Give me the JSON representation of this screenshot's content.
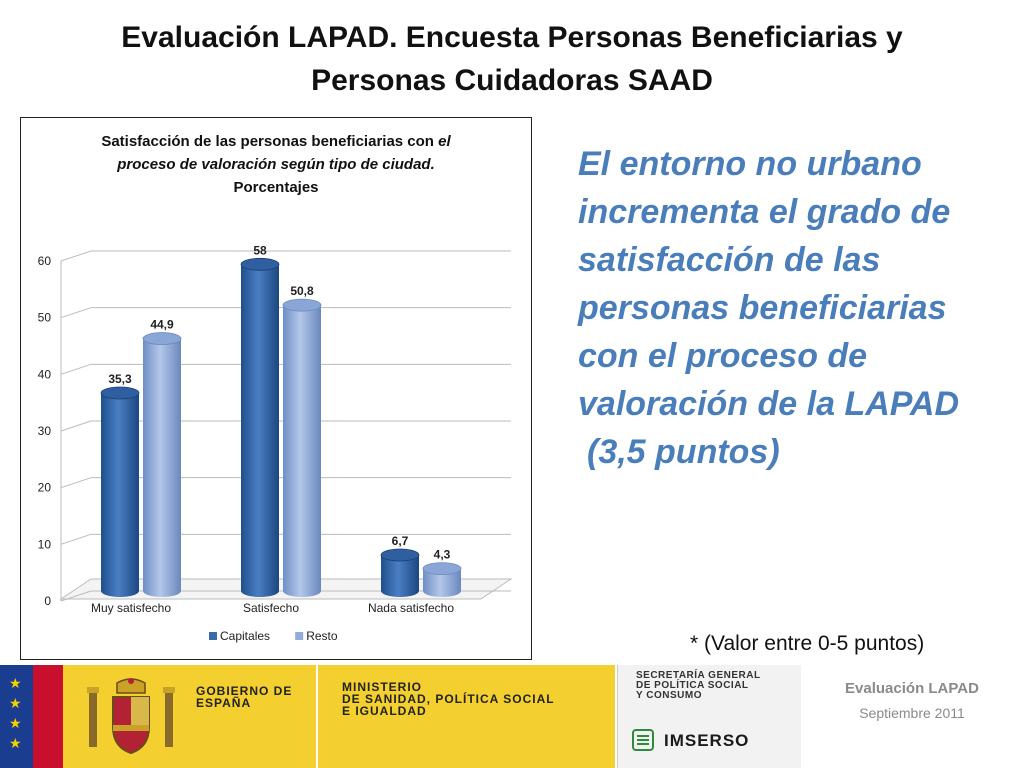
{
  "slide": {
    "title_line1": "Evaluación LAPAD.  Encuesta Personas Beneficiarias y",
    "title_line2": "Personas  Cuidadoras SAAD",
    "side_text_lines": [
      "El entorno no urbano",
      "incrementa el grado de",
      "satisfacción de las",
      "personas beneficiarias",
      "con el proceso de",
      "valoración de la LAPAD",
      "(3,5 puntos)"
    ],
    "note": "* (Valor entre 0-5 puntos)",
    "footer": {
      "gobierno": "GOBIERNO DE ESPAÑA",
      "ministerio_l1": "MINISTERIO",
      "ministerio_l2": "DE SANIDAD, POLÍTICA SOCIAL",
      "ministerio_l3": "E IGUALDAD",
      "secretaria_l1": "SECRETARÍA GENERAL",
      "secretaria_l2": "DE POLÍTICA SOCIAL",
      "secretaria_l3": "Y CONSUMO",
      "imserso": "IMSERSO",
      "right_title": "Evaluación LAPAD",
      "right_date": "Septiembre 2011"
    }
  },
  "chart_data": {
    "type": "bar",
    "title_line1": "Satisfacción de las personas beneficiarias con ",
    "title_line1_italic": "el",
    "title_line2": "proceso de valoración según tipo de ciudad.",
    "title_line3": "Porcentajes",
    "categories": [
      "Muy satisfecho",
      "Satisfecho",
      "Nada satisfecho"
    ],
    "series": [
      {
        "name": "Capitales",
        "values": [
          35.3,
          58,
          6.7
        ],
        "labels": [
          "35,3",
          "58",
          "6,7"
        ],
        "color": "#3a6aa8"
      },
      {
        "name": "Resto",
        "values": [
          44.9,
          50.8,
          4.3
        ],
        "labels": [
          "44,9",
          "50,8",
          "4,3"
        ],
        "color": "#92acd8"
      }
    ],
    "ylim": [
      0,
      60
    ],
    "yticks": [
      0,
      10,
      20,
      30,
      40,
      50,
      60
    ],
    "grid": true,
    "legend": "bottom"
  }
}
